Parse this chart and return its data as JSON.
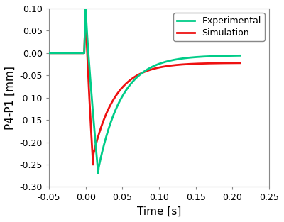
{
  "xlabel": "Time [s]",
  "ylabel": "P4-P1 [mm]",
  "xlim": [
    -0.05,
    0.25
  ],
  "ylim": [
    -0.3,
    0.1
  ],
  "xticks": [
    -0.05,
    0.0,
    0.05,
    0.1,
    0.15,
    0.2,
    0.25
  ],
  "yticks": [
    -0.3,
    -0.25,
    -0.2,
    -0.15,
    -0.1,
    -0.05,
    0.0,
    0.05,
    0.1
  ],
  "experimental_color": "#00CC88",
  "simulation_color": "#EE1111",
  "legend_labels": [
    "Experimental",
    "Simulation"
  ],
  "background_color": "#ffffff",
  "line_width": 2.0,
  "xlabel_fontsize": 11,
  "ylabel_fontsize": 11,
  "tick_fontsize": 9
}
